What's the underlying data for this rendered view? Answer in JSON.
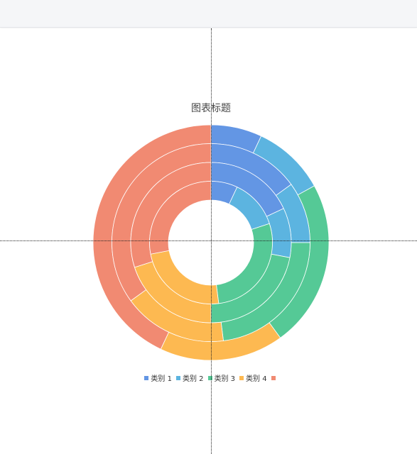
{
  "chart_data": {
    "type": "pie",
    "subtype": "multi-ring-donut",
    "title": "图表标题",
    "legend_position": "bottom-center",
    "categories": [
      "类别 1",
      "类别 2",
      "类别 3",
      "类别 4",
      ""
    ],
    "colors": [
      "#6396e4",
      "#5cb4e0",
      "#55c996",
      "#fdb951",
      "#f18a72"
    ],
    "series": [
      {
        "values": [
          7,
          10,
          23,
          17,
          43
        ]
      },
      {
        "values": [
          15,
          10,
          23,
          17,
          35
        ]
      },
      {
        "values": [
          18,
          10,
          22,
          20,
          30
        ]
      },
      {
        "values": [
          7,
          13,
          28,
          24,
          28
        ]
      }
    ]
  }
}
